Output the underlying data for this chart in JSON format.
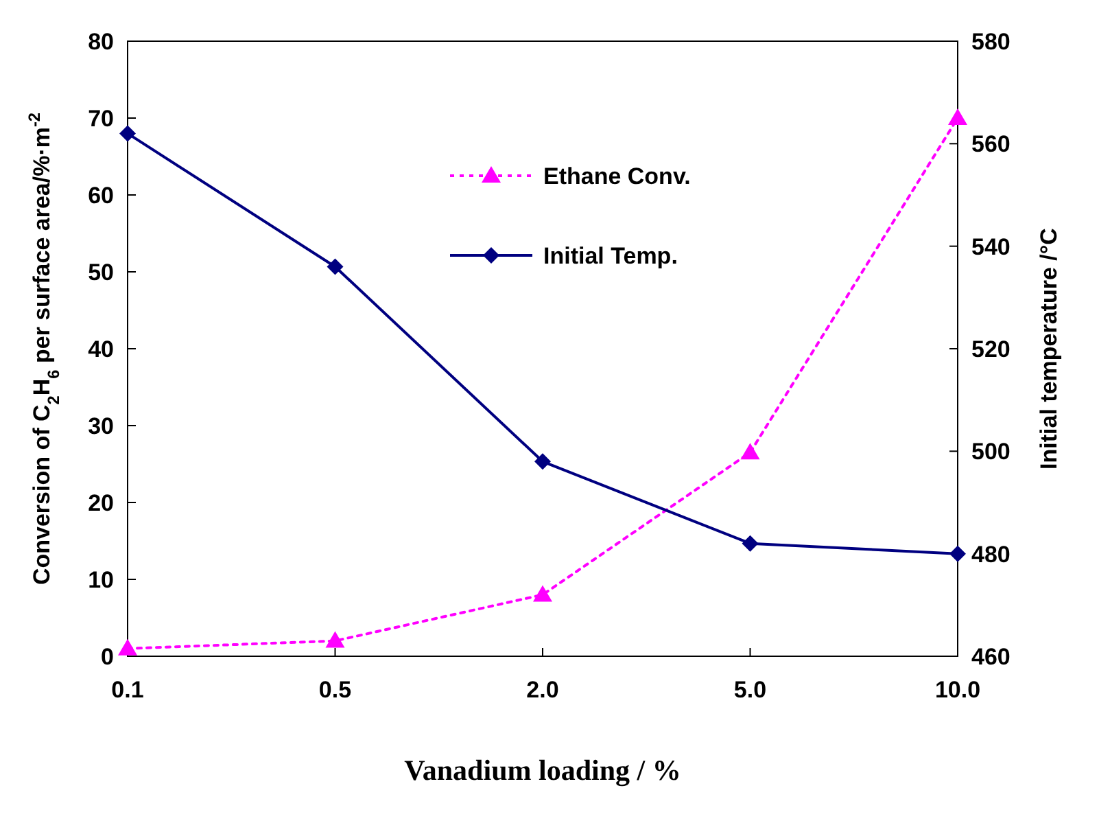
{
  "chart_data": {
    "type": "line",
    "xlabel": "Vanadium loading / %",
    "ylabel": "Conversion of C$_{2}$H$_{6}$ per surface area/%·m$^{-2}$",
    "y2label": "Initial temperature /°C",
    "categories": [
      "0.1",
      "0.5",
      "2.0",
      "5.0",
      "10.0"
    ],
    "series": [
      {
        "name": "Ethane Conv.",
        "color": "#ff00ff",
        "values": [
          1,
          2,
          8,
          26.5,
          70
        ],
        "marker": "triangle",
        "line_style": "dotted"
      },
      {
        "name": "Initial Temp.",
        "color": "#000080",
        "values": [
          562,
          536,
          498,
          482,
          480
        ],
        "marker": "diamond",
        "line_style": "solid",
        "axis": "y2"
      }
    ],
    "ylim": [
      0,
      80
    ],
    "yticks": [
      0,
      10,
      20,
      30,
      40,
      50,
      60,
      70,
      80
    ],
    "y2lim": [
      460,
      580
    ],
    "y2ticks": [
      460,
      480,
      500,
      520,
      540,
      560,
      580
    ],
    "grid": false,
    "legend": "top"
  }
}
